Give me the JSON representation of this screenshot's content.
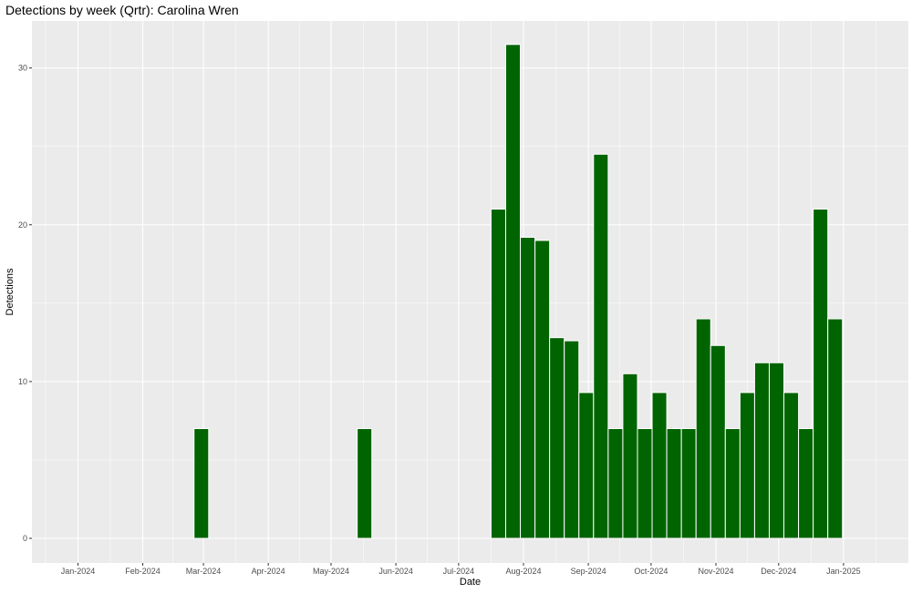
{
  "chart_data": {
    "type": "bar",
    "title": "Detections by week (Qrtr): Carolina Wren",
    "xlabel": "Date",
    "ylabel": "Detections",
    "ylim": [
      0,
      33
    ],
    "y_ticks": [
      0,
      10,
      20,
      30
    ],
    "x_range": [
      "2023-12-10",
      "2025-02-01"
    ],
    "x_ticks": [
      {
        "date": "2024-01-01",
        "label": "Jan-2024"
      },
      {
        "date": "2024-02-01",
        "label": "Feb-2024"
      },
      {
        "date": "2024-03-01",
        "label": "Mar-2024"
      },
      {
        "date": "2024-04-01",
        "label": "Apr-2024"
      },
      {
        "date": "2024-05-01",
        "label": "May-2024"
      },
      {
        "date": "2024-06-01",
        "label": "Jun-2024"
      },
      {
        "date": "2024-07-01",
        "label": "Jul-2024"
      },
      {
        "date": "2024-08-01",
        "label": "Aug-2024"
      },
      {
        "date": "2024-09-01",
        "label": "Sep-2024"
      },
      {
        "date": "2024-10-01",
        "label": "Oct-2024"
      },
      {
        "date": "2024-11-01",
        "label": "Nov-2024"
      },
      {
        "date": "2024-12-01",
        "label": "Dec-2024"
      },
      {
        "date": "2025-01-01",
        "label": "Jan-2025"
      }
    ],
    "grid": true,
    "bar_color": "#006400",
    "panel_color": "#ebebeb",
    "points": [
      {
        "week": "2024-02-29",
        "value": 7
      },
      {
        "week": "2024-05-17",
        "value": 7
      },
      {
        "week": "2024-07-20",
        "value": 21
      },
      {
        "week": "2024-07-27",
        "value": 31.5
      },
      {
        "week": "2024-08-03",
        "value": 19.2
      },
      {
        "week": "2024-08-10",
        "value": 19
      },
      {
        "week": "2024-08-17",
        "value": 12.8
      },
      {
        "week": "2024-08-24",
        "value": 12.6
      },
      {
        "week": "2024-08-31",
        "value": 9.3
      },
      {
        "week": "2024-09-07",
        "value": 24.5
      },
      {
        "week": "2024-09-14",
        "value": 7
      },
      {
        "week": "2024-09-21",
        "value": 10.5
      },
      {
        "week": "2024-09-28",
        "value": 7
      },
      {
        "week": "2024-10-05",
        "value": 9.3
      },
      {
        "week": "2024-10-12",
        "value": 7
      },
      {
        "week": "2024-10-19",
        "value": 7
      },
      {
        "week": "2024-10-26",
        "value": 14
      },
      {
        "week": "2024-11-02",
        "value": 12.3
      },
      {
        "week": "2024-11-09",
        "value": 7
      },
      {
        "week": "2024-11-16",
        "value": 9.3
      },
      {
        "week": "2024-11-23",
        "value": 11.2
      },
      {
        "week": "2024-11-30",
        "value": 11.2
      },
      {
        "week": "2024-12-07",
        "value": 9.3
      },
      {
        "week": "2024-12-14",
        "value": 7
      },
      {
        "week": "2024-12-21",
        "value": 21
      },
      {
        "week": "2024-12-28",
        "value": 14
      }
    ]
  }
}
